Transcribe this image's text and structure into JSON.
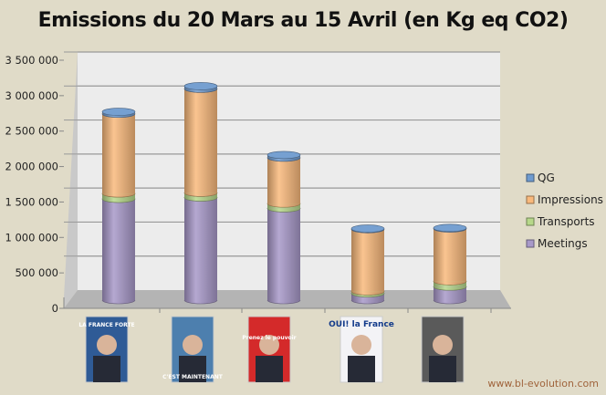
{
  "chart_data": {
    "type": "bar",
    "stacked": true,
    "title": "Emissions du 20 Mars au 15 Avril (en Kg eq CO2)",
    "xlabel": "",
    "ylabel": "",
    "ylim": [
      0,
      3500000
    ],
    "yticks": [
      "0",
      "500 000",
      "1 000 000",
      "1 500 000",
      "2 000 000",
      "2 500 000",
      "3 000 000",
      "3 500 000"
    ],
    "ytick_values": [
      0,
      500000,
      1000000,
      1500000,
      2000000,
      2500000,
      3000000,
      3500000
    ],
    "grid": true,
    "legend_position": "right",
    "categories": [
      "Poster 1",
      "Poster 2",
      "Poster 3",
      "Poster 4",
      "Poster 5"
    ],
    "series": [
      {
        "name": "Meetings",
        "color": "#a899c9",
        "values": [
          1500000,
          1520000,
          1360000,
          100000,
          200000
        ]
      },
      {
        "name": "Transports",
        "color": "#b7d88a",
        "values": [
          80000,
          70000,
          70000,
          30000,
          80000
        ]
      },
      {
        "name": "Impressions",
        "color": "#f9b97c",
        "values": [
          1180000,
          1540000,
          680000,
          920000,
          780000
        ]
      },
      {
        "name": "QG",
        "color": "#6f9bcf",
        "values": [
          30000,
          40000,
          40000,
          10000,
          10000
        ]
      }
    ],
    "legend_order": [
      "QG",
      "Impressions",
      "Transports",
      "Meetings"
    ]
  },
  "posters": [
    {
      "text": "LA FRANCE FORTE",
      "color": "#2f5b96"
    },
    {
      "text": "C'EST MAINTENANT",
      "color": "#4d7fae"
    },
    {
      "text": "Prenez le pouvoir",
      "color": "#d42a2a"
    },
    {
      "text": "OUI! la France",
      "color": "#f3f3f6"
    },
    {
      "text": "",
      "color": "#5a5a5a"
    }
  ],
  "source": "www.bl-evolution.com"
}
